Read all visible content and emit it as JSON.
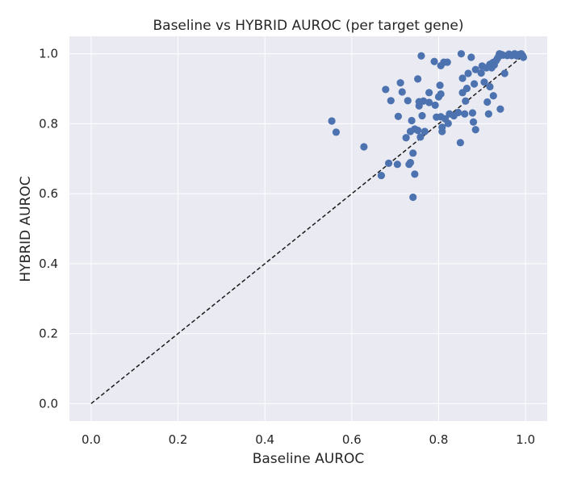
{
  "chart_data": {
    "type": "scatter",
    "title": "Baseline vs HYBRID AUROC (per target gene)",
    "xlabel": "Baseline AUROC",
    "ylabel": "HYBRID AUROC",
    "xlim": [
      -0.05,
      1.05
    ],
    "ylim": [
      -0.05,
      1.05
    ],
    "xticks": [
      "0.0",
      "0.2",
      "0.4",
      "0.6",
      "0.8",
      "1.0"
    ],
    "yticks": [
      "0.0",
      "0.2",
      "0.4",
      "0.6",
      "0.8",
      "1.0"
    ],
    "grid": true,
    "background": "#eaeaf2",
    "marker_color": "#4c72b0",
    "reference_line": {
      "style": "dashed",
      "color": "#1a1a1a",
      "from": [
        0,
        0
      ],
      "to": [
        1,
        1
      ]
    },
    "points": [
      [
        0.554,
        0.808
      ],
      [
        0.564,
        0.776
      ],
      [
        0.628,
        0.734
      ],
      [
        0.668,
        0.652
      ],
      [
        0.685,
        0.687
      ],
      [
        0.678,
        0.898
      ],
      [
        0.69,
        0.866
      ],
      [
        0.705,
        0.684
      ],
      [
        0.707,
        0.821
      ],
      [
        0.712,
        0.917
      ],
      [
        0.716,
        0.891
      ],
      [
        0.725,
        0.76
      ],
      [
        0.729,
        0.866
      ],
      [
        0.732,
        0.684
      ],
      [
        0.735,
        0.778
      ],
      [
        0.735,
        0.689
      ],
      [
        0.738,
        0.809
      ],
      [
        0.741,
        0.716
      ],
      [
        0.741,
        0.59
      ],
      [
        0.745,
        0.656
      ],
      [
        0.745,
        0.785
      ],
      [
        0.752,
        0.928
      ],
      [
        0.752,
        0.781
      ],
      [
        0.755,
        0.851
      ],
      [
        0.755,
        0.863
      ],
      [
        0.758,
        0.762
      ],
      [
        0.76,
        0.994
      ],
      [
        0.762,
        0.823
      ],
      [
        0.765,
        0.865
      ],
      [
        0.768,
        0.778
      ],
      [
        0.778,
        0.889
      ],
      [
        0.778,
        0.861
      ],
      [
        0.79,
        0.978
      ],
      [
        0.792,
        0.853
      ],
      [
        0.795,
        0.819
      ],
      [
        0.8,
        0.877
      ],
      [
        0.803,
        0.91
      ],
      [
        0.805,
        0.885
      ],
      [
        0.805,
        0.966
      ],
      [
        0.805,
        0.82
      ],
      [
        0.808,
        0.778
      ],
      [
        0.808,
        0.79
      ],
      [
        0.812,
        0.976
      ],
      [
        0.815,
        0.814
      ],
      [
        0.82,
        0.976
      ],
      [
        0.822,
        0.801
      ],
      [
        0.825,
        0.828
      ],
      [
        0.835,
        0.823
      ],
      [
        0.845,
        0.832
      ],
      [
        0.85,
        0.746
      ],
      [
        0.852,
        1.0
      ],
      [
        0.855,
        0.889
      ],
      [
        0.855,
        0.93
      ],
      [
        0.86,
        0.828
      ],
      [
        0.862,
        0.865
      ],
      [
        0.865,
        0.901
      ],
      [
        0.868,
        0.944
      ],
      [
        0.875,
        0.99
      ],
      [
        0.878,
        0.831
      ],
      [
        0.88,
        0.805
      ],
      [
        0.882,
        0.914
      ],
      [
        0.885,
        0.783
      ],
      [
        0.885,
        0.955
      ],
      [
        0.898,
        0.945
      ],
      [
        0.9,
        0.965
      ],
      [
        0.905,
        0.919
      ],
      [
        0.91,
        0.96
      ],
      [
        0.912,
        0.862
      ],
      [
        0.915,
        0.828
      ],
      [
        0.918,
        0.906
      ],
      [
        0.918,
        0.97
      ],
      [
        0.922,
        0.96
      ],
      [
        0.925,
        0.975
      ],
      [
        0.926,
        0.88
      ],
      [
        0.928,
        0.968
      ],
      [
        0.932,
        0.98
      ],
      [
        0.935,
        0.986
      ],
      [
        0.938,
        0.992
      ],
      [
        0.94,
        1.0
      ],
      [
        0.942,
        0.842
      ],
      [
        0.948,
        0.996
      ],
      [
        0.952,
        0.944
      ],
      [
        0.958,
        0.995
      ],
      [
        0.962,
        0.999
      ],
      [
        0.968,
        0.995
      ],
      [
        0.975,
        1.0
      ],
      [
        0.98,
        0.994
      ],
      [
        0.985,
        0.998
      ],
      [
        0.99,
        1.0
      ],
      [
        0.993,
        0.995
      ],
      [
        0.995,
        0.99
      ],
      [
        0.96,
        0.997
      ],
      [
        0.945,
        0.998
      ]
    ]
  }
}
